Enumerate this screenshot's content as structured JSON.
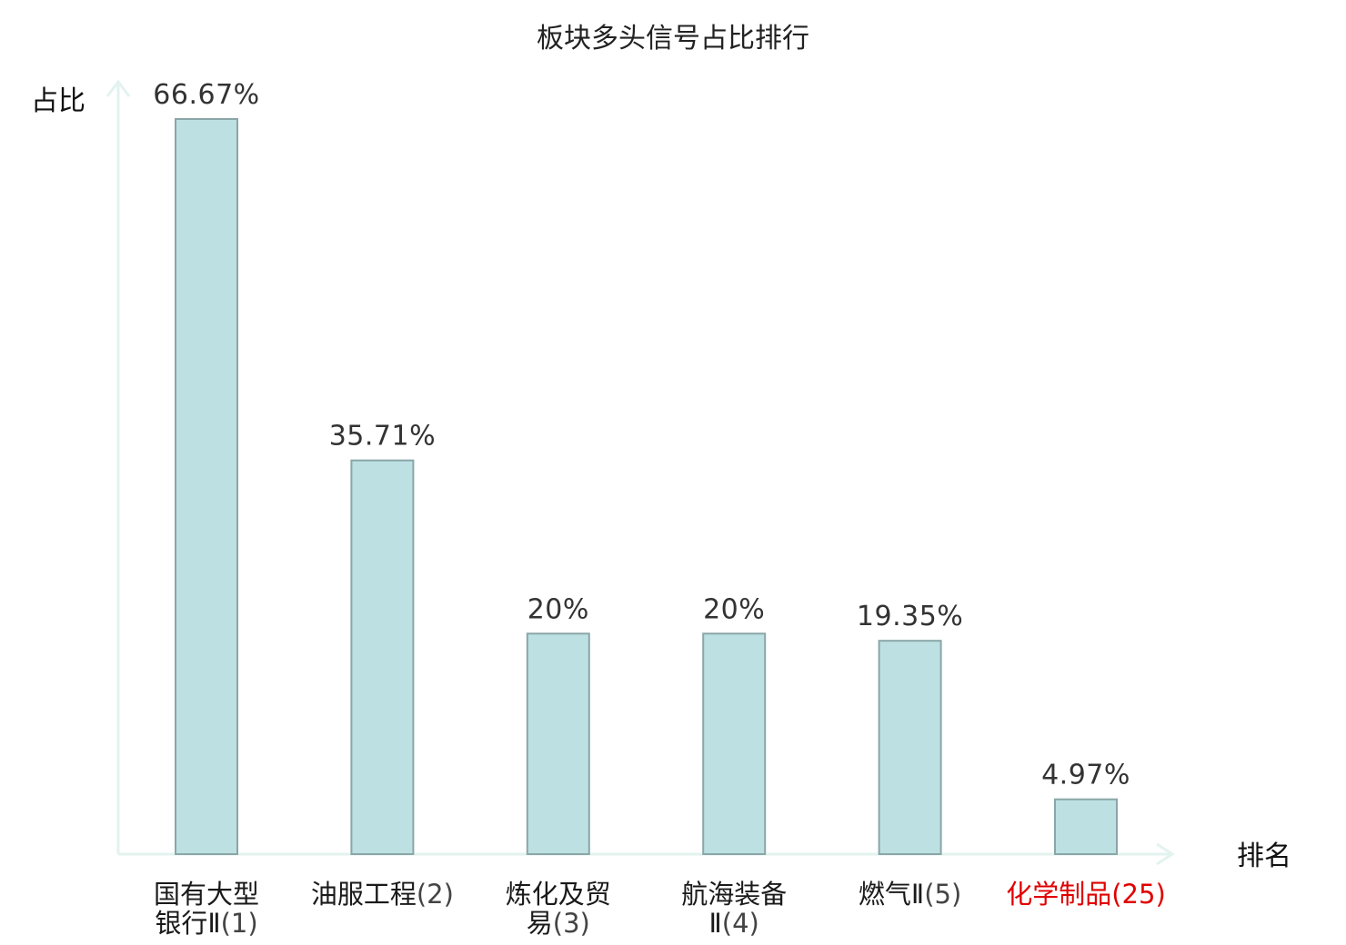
{
  "chart_data": {
    "type": "bar",
    "title": "板块多头信号占比排行",
    "ylabel": "占比",
    "xlabel": "排名",
    "ylim": [
      0,
      70
    ],
    "grid": false,
    "categories": [
      {
        "lines": [
          "国有大型",
          "银行Ⅱ"
        ],
        "rank": "(1)",
        "highlight": false
      },
      {
        "lines": [
          "油服工程"
        ],
        "rank": "(2)",
        "highlight": false
      },
      {
        "lines": [
          "炼化及贸",
          "易"
        ],
        "rank": "(3)",
        "highlight": false
      },
      {
        "lines": [
          "航海装备",
          "Ⅱ"
        ],
        "rank": "(4)",
        "highlight": false
      },
      {
        "lines": [
          "燃气Ⅱ"
        ],
        "rank": "(5)",
        "highlight": false
      },
      {
        "lines": [
          "化学制品"
        ],
        "rank": "(25)",
        "highlight": true
      }
    ],
    "values": [
      66.67,
      35.71,
      20,
      20,
      19.35,
      4.97
    ],
    "value_labels": [
      "66.67%",
      "35.71%",
      "20%",
      "20%",
      "19.35%",
      "4.97%"
    ],
    "colors": {
      "bar_fill": "#bde0e3",
      "bar_stroke": "#8aa6a8",
      "axis": "#e3f3ef",
      "highlight": "#e00000"
    }
  }
}
